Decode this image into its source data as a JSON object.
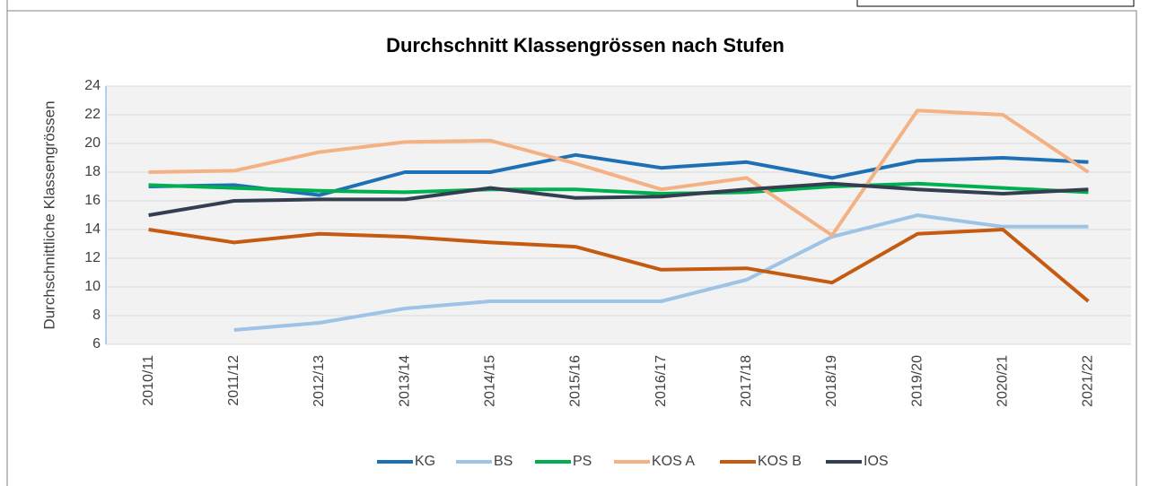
{
  "chart_data": {
    "type": "line",
    "title": "Durchschnitt Klassengrössen nach Stufen",
    "y_label": "Durchschnittliche Klassengrössen",
    "categories": [
      "2010/11",
      "2011/12",
      "2012/13",
      "2013/14",
      "2014/15",
      "2015/16",
      "2016/17",
      "2017/18",
      "2018/19",
      "2019/20",
      "2020/21",
      "2021/22"
    ],
    "series": [
      {
        "name": "KG",
        "color": "#1f6fb5",
        "values": [
          17.0,
          17.1,
          16.4,
          18.0,
          18.0,
          19.2,
          18.3,
          18.7,
          17.6,
          18.8,
          19.0,
          18.7
        ]
      },
      {
        "name": "BS",
        "color": "#9dc3e6",
        "values": [
          null,
          7.0,
          7.5,
          8.5,
          9.0,
          9.0,
          9.0,
          10.5,
          13.5,
          15.0,
          14.2,
          14.2
        ]
      },
      {
        "name": "PS",
        "color": "#00b050",
        "values": [
          17.1,
          16.9,
          16.7,
          16.6,
          16.8,
          16.8,
          16.5,
          16.6,
          17.0,
          17.2,
          16.9,
          16.6
        ]
      },
      {
        "name": "KOS A",
        "color": "#f4b183",
        "values": [
          18.0,
          18.1,
          19.4,
          20.1,
          20.2,
          18.6,
          16.8,
          17.6,
          13.6,
          22.3,
          22.0,
          18.0
        ]
      },
      {
        "name": "KOS B",
        "color": "#c55a11",
        "values": [
          14.0,
          13.1,
          13.7,
          13.5,
          13.1,
          12.8,
          11.2,
          11.3,
          10.3,
          13.7,
          14.0,
          9.0
        ]
      },
      {
        "name": "IOS",
        "color": "#333f50",
        "values": [
          15.0,
          16.0,
          16.1,
          16.1,
          16.9,
          16.2,
          16.3,
          16.8,
          17.2,
          16.8,
          16.5,
          16.8
        ]
      }
    ],
    "ylim": [
      6,
      24
    ],
    "yticks": [
      6,
      8,
      10,
      12,
      14,
      16,
      18,
      20,
      22,
      24
    ],
    "grid": true,
    "legend": "bottom"
  }
}
